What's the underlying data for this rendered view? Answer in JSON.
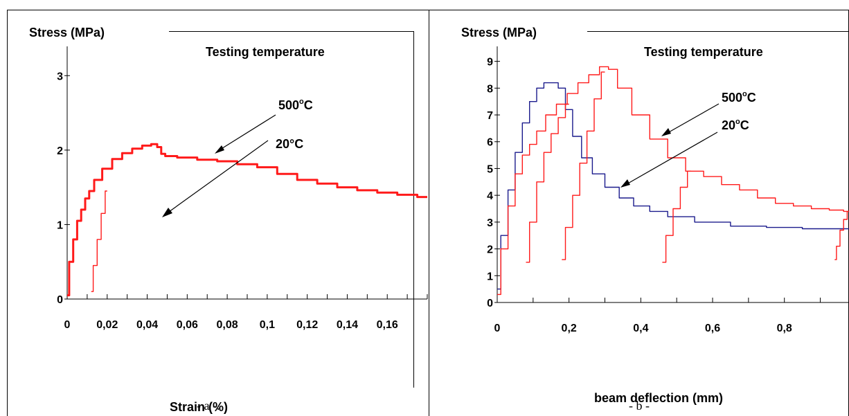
{
  "charts": [
    {
      "ylabel": "Stress (MPa)",
      "xlabel": "Strain (%)",
      "note": "Testing temperature",
      "caption": "- a -.",
      "annotations": [
        {
          "text": "500",
          "unit": "o",
          "suffix": "C"
        },
        {
          "text": "20°C"
        }
      ]
    },
    {
      "ylabel": "Stress (MPa)",
      "xlabel": "beam deflection (mm)",
      "note": "Testing temperature",
      "caption": "- b -",
      "annotations": [
        {
          "text": "500",
          "unit": "o",
          "suffix": "C"
        },
        {
          "text": "20",
          "unit": "o",
          "suffix": "C"
        }
      ]
    }
  ],
  "chart_data": [
    {
      "type": "line",
      "ylabel": "Stress (MPa)",
      "xlabel": "Strain (%)",
      "xlim": [
        0,
        0.18
      ],
      "ylim": [
        0,
        3.3
      ],
      "xticks": [
        "0",
        "0,02",
        "0,04",
        "0,06",
        "0,08",
        "0,1",
        "0,12",
        "0,14",
        "0,16"
      ],
      "xtick_values": [
        0,
        0.02,
        0.04,
        0.06,
        0.08,
        0.1,
        0.12,
        0.14,
        0.16
      ],
      "yticks": [
        "0",
        "1",
        "2",
        "3"
      ],
      "ytick_values": [
        0,
        1,
        2,
        3
      ],
      "grid": false,
      "series": [
        {
          "color": "#ff1a1a",
          "x": [
            0,
            0.002,
            0.004,
            0.006,
            0.008,
            0.01,
            0.012,
            0.015,
            0.02,
            0.025,
            0.03,
            0.035,
            0.04,
            0.044,
            0.046,
            0.048,
            0.05,
            0.06,
            0.07,
            0.08,
            0.09,
            0.1,
            0.11,
            0.12,
            0.13,
            0.14,
            0.15,
            0.16,
            0.17,
            0.18
          ],
          "y": [
            0.05,
            0.5,
            0.8,
            1.05,
            1.2,
            1.35,
            1.45,
            1.6,
            1.75,
            1.88,
            1.96,
            2.02,
            2.06,
            2.08,
            2.04,
            1.95,
            1.92,
            1.9,
            1.87,
            1.85,
            1.81,
            1.77,
            1.68,
            1.6,
            1.55,
            1.5,
            1.46,
            1.43,
            1.4,
            1.37
          ]
        },
        {
          "color": "#ff1a1a",
          "x": [
            0.012,
            0.014,
            0.016,
            0.018,
            0.02
          ],
          "y": [
            0.1,
            0.45,
            0.8,
            1.15,
            1.45
          ]
        }
      ]
    },
    {
      "type": "line",
      "ylabel": "Stress (MPa)",
      "xlabel": "beam deflection (mm)",
      "xlim": [
        0,
        0.98
      ],
      "ylim": [
        0,
        9.3
      ],
      "xticks": [
        "0",
        "0,2",
        "0,4",
        "0,6",
        "0,8"
      ],
      "xtick_values": [
        0,
        0.2,
        0.4,
        0.6,
        0.8
      ],
      "yticks": [
        "0",
        "1",
        "2",
        "3",
        "4",
        "5",
        "6",
        "7",
        "8",
        "9"
      ],
      "ytick_values": [
        0,
        1,
        2,
        3,
        4,
        5,
        6,
        7,
        8,
        9
      ],
      "grid": false,
      "series": [
        {
          "name": "20°C",
          "color": "#1a1a8c",
          "x": [
            0,
            0.02,
            0.04,
            0.06,
            0.08,
            0.1,
            0.12,
            0.14,
            0.16,
            0.18,
            0.2,
            0.22,
            0.25,
            0.28,
            0.32,
            0.36,
            0.4,
            0.45,
            0.5,
            0.6,
            0.7,
            0.8,
            0.9,
            0.98
          ],
          "y": [
            0.5,
            2.5,
            4.2,
            5.6,
            6.7,
            7.5,
            8.0,
            8.2,
            8.2,
            8.0,
            7.2,
            6.2,
            5.4,
            4.8,
            4.3,
            3.9,
            3.6,
            3.4,
            3.2,
            3.0,
            2.85,
            2.8,
            2.75,
            2.75
          ]
        },
        {
          "name": "500°C",
          "color": "#ff1a1a",
          "x": [
            0,
            0.02,
            0.04,
            0.06,
            0.08,
            0.1,
            0.12,
            0.15,
            0.18,
            0.21,
            0.24,
            0.27,
            0.3,
            0.32,
            0.35,
            0.4,
            0.45,
            0.5,
            0.55,
            0.6,
            0.65,
            0.7,
            0.75,
            0.8,
            0.85,
            0.9,
            0.95,
            0.98
          ],
          "y": [
            0.3,
            2.0,
            3.6,
            4.8,
            5.5,
            5.9,
            6.4,
            7.0,
            7.4,
            7.8,
            8.2,
            8.5,
            8.8,
            8.7,
            8.0,
            7.0,
            6.1,
            5.4,
            4.9,
            4.7,
            4.4,
            4.2,
            3.9,
            3.7,
            3.6,
            3.5,
            3.45,
            3.4
          ]
        },
        {
          "name": "500°C",
          "color": "#ff1a1a",
          "x": [
            0.08,
            0.1,
            0.12,
            0.14,
            0.16,
            0.18,
            0.2
          ],
          "y": [
            1.5,
            3.0,
            4.5,
            5.6,
            6.3,
            6.9,
            7.4
          ]
        },
        {
          "name": "500°C",
          "color": "#ff1a1a",
          "x": [
            0.18,
            0.2,
            0.22,
            0.24,
            0.26,
            0.28,
            0.3
          ],
          "y": [
            1.6,
            2.8,
            4.0,
            5.2,
            6.4,
            7.6,
            8.6
          ]
        },
        {
          "name": "500°C",
          "color": "#ff1a1a",
          "x": [
            0.46,
            0.48,
            0.5,
            0.52,
            0.54
          ],
          "y": [
            1.5,
            2.5,
            3.5,
            4.3,
            4.9
          ]
        },
        {
          "name": "500°C",
          "color": "#ff1a1a",
          "x": [
            0.94,
            0.95,
            0.96,
            0.97,
            0.98
          ],
          "y": [
            1.6,
            2.1,
            2.7,
            3.1,
            3.4
          ]
        }
      ]
    }
  ]
}
